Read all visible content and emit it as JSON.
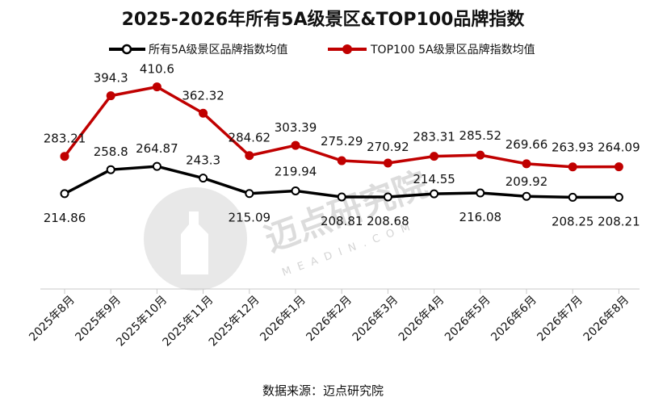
{
  "chart_data": {
    "type": "line",
    "title": "2025-2026年所有5A级景区&TOP100品牌指数",
    "categories": [
      "2025年8月",
      "2025年9月",
      "2025年10月",
      "2025年11月",
      "2025年12月",
      "2026年1月",
      "2026年2月",
      "2026年3月",
      "2026年4月",
      "2026年5月",
      "2026年6月",
      "2026年7月",
      "2026年8月"
    ],
    "series": [
      {
        "name": "所有5A级景区品牌指数均值",
        "color": "#000000",
        "values": [
          214.86,
          258.8,
          264.87,
          243.3,
          215.09,
          219.94,
          208.81,
          208.68,
          214.55,
          216.08,
          209.92,
          208.25,
          208.21
        ],
        "labels": [
          "214.86",
          "258.8",
          "264.87",
          "243.3",
          "215.09",
          "219.94",
          "208.81",
          "208.68",
          "214.55",
          "216.08",
          "209.92",
          "208.25",
          "208.21"
        ]
      },
      {
        "name": "TOP100 5A级景区品牌指数均值",
        "color": "#c00000",
        "values": [
          283.21,
          394.3,
          410.6,
          362.32,
          284.62,
          303.39,
          275.29,
          270.92,
          283.31,
          285.52,
          269.66,
          263.93,
          264.09
        ],
        "labels": [
          "283.21",
          "394.3",
          "410.6",
          "362.32",
          "284.62",
          "303.39",
          "275.29",
          "270.92",
          "283.31",
          "285.52",
          "269.66",
          "263.93",
          "264.09"
        ]
      }
    ],
    "ylim": [
      40,
      490
    ],
    "grid": false,
    "legend": "top"
  },
  "source": "数据来源：迈点研究院",
  "watermark": {
    "text": "迈点研究院",
    "sub": "MEADIN.COM"
  }
}
